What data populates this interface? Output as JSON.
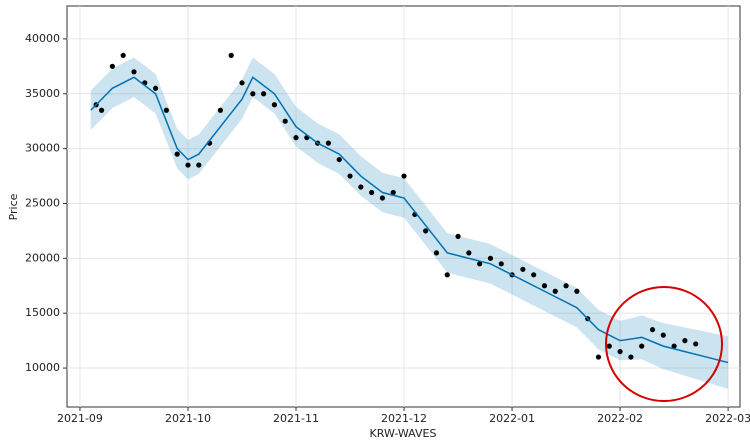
{
  "chart_data": {
    "type": "forecast",
    "ylabel": "Price",
    "xlabel": "KRW-WAVES",
    "xlim": [
      -0.12,
      6.11
    ],
    "ylim": [
      6450,
      43000
    ],
    "xticks": [
      {
        "value": 0,
        "label": "2021-09"
      },
      {
        "value": 1,
        "label": "2021-10"
      },
      {
        "value": 2,
        "label": "2021-11"
      },
      {
        "value": 3,
        "label": "2021-12"
      },
      {
        "value": 4,
        "label": "2022-01"
      },
      {
        "value": 5,
        "label": "2022-02"
      },
      {
        "value": 6,
        "label": "2022-03"
      }
    ],
    "yticks": [
      10000,
      15000,
      20000,
      25000,
      30000,
      35000,
      40000
    ],
    "grid": true,
    "observed": {
      "color": "#000000",
      "x": [
        0.15,
        0.2,
        0.3,
        0.4,
        0.5,
        0.6,
        0.7,
        0.8,
        0.9,
        1.0,
        1.1,
        1.2,
        1.3,
        1.4,
        1.5,
        1.6,
        1.7,
        1.8,
        1.9,
        2.0,
        2.1,
        2.2,
        2.3,
        2.4,
        2.5,
        2.6,
        2.7,
        2.8,
        2.9,
        3.0,
        3.1,
        3.2,
        3.3,
        3.4,
        3.5,
        3.6,
        3.7,
        3.8,
        3.9,
        4.0,
        4.1,
        4.2,
        4.3,
        4.4,
        4.5,
        4.6,
        4.7,
        4.8,
        4.9,
        5.0,
        5.1,
        5.2,
        5.3,
        5.4,
        5.5,
        5.6,
        5.7
      ],
      "values": [
        34000,
        33500,
        37500,
        38500,
        37000,
        36000,
        35500,
        33500,
        29500,
        28500,
        28500,
        30500,
        33500,
        38500,
        36000,
        35000,
        35000,
        34000,
        32500,
        31000,
        31000,
        30500,
        30500,
        29000,
        27500,
        26500,
        26000,
        25500,
        26000,
        27500,
        24000,
        22500,
        20500,
        18500,
        22000,
        20500,
        19500,
        20000,
        19500,
        18500,
        19000,
        18500,
        17500,
        17000,
        17500,
        17000,
        14500,
        11000,
        12000,
        11500,
        11000,
        12000,
        13500,
        13000,
        12000,
        12500,
        12200
      ]
    },
    "forecast": {
      "color": "#0072B2",
      "band_color": "#0072B2",
      "x": [
        0.1,
        0.3,
        0.5,
        0.7,
        0.9,
        1.0,
        1.1,
        1.3,
        1.5,
        1.6,
        1.8,
        2.0,
        2.2,
        2.4,
        2.6,
        2.8,
        3.0,
        3.2,
        3.4,
        3.6,
        3.8,
        4.0,
        4.2,
        4.4,
        4.6,
        4.8,
        5.0,
        5.2,
        5.4,
        5.6,
        5.8,
        6.0
      ],
      "values": [
        33500,
        35500,
        36500,
        35000,
        30000,
        29000,
        29500,
        32000,
        34500,
        36500,
        35000,
        32000,
        30500,
        29500,
        27500,
        26000,
        25500,
        23000,
        20500,
        20000,
        19500,
        18500,
        17500,
        16500,
        15500,
        13500,
        12500,
        12800,
        12000,
        11500,
        11000,
        10500
      ],
      "lower": [
        31700,
        33700,
        34700,
        33200,
        28200,
        27200,
        27700,
        30200,
        32700,
        34700,
        33200,
        30200,
        28700,
        27700,
        25700,
        24200,
        23700,
        21200,
        18700,
        18200,
        17700,
        16700,
        15700,
        14700,
        13700,
        11700,
        10700,
        10800,
        9900,
        9300,
        8700,
        8100
      ],
      "upper": [
        35300,
        37300,
        38300,
        36800,
        31800,
        30800,
        31300,
        33800,
        36300,
        38300,
        36800,
        33800,
        32300,
        31300,
        29300,
        27800,
        27300,
        24800,
        22300,
        21800,
        21300,
        20300,
        19300,
        18300,
        17300,
        15300,
        14300,
        14800,
        14100,
        13700,
        13300,
        12900
      ]
    }
  }
}
